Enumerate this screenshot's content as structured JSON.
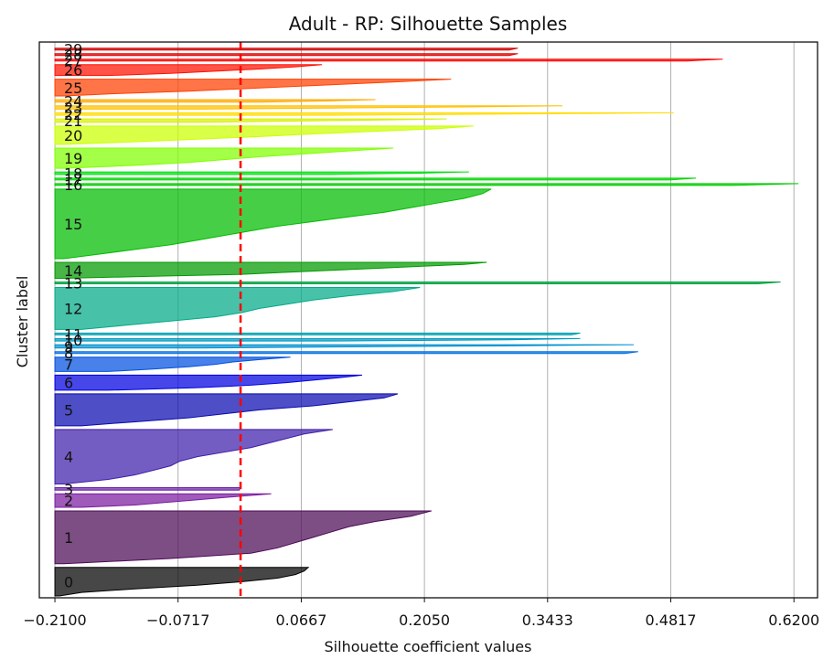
{
  "chart_data": {
    "type": "area",
    "title": "Adult - RP: Silhouette Samples",
    "xlabel": "Silhouette coefficient values",
    "ylabel": "Cluster label",
    "xlim": [
      -0.2275,
      0.6465
    ],
    "xticks": [
      -0.21,
      -0.0717,
      0.0667,
      0.205,
      0.3433,
      0.4817,
      0.62
    ],
    "xtick_labels": [
      "−0.2100",
      "−0.0717",
      "0.0667",
      "0.2050",
      "0.3433",
      "0.4817",
      "0.6200"
    ],
    "grid": "vertical",
    "average_silhouette": -0.0015,
    "average_line_color": "#ff0000",
    "clusters": [
      {
        "label": "0",
        "size": 34,
        "color": "#000000",
        "values": [
          0.0745,
          0.07,
          0.06,
          0.04,
          0.0,
          -0.05,
          -0.12,
          -0.18,
          -0.205
        ]
      },
      {
        "label": "1",
        "size": 63,
        "color": "#4b0a55",
        "values": [
          0.213,
          0.19,
          0.15,
          0.12,
          0.1,
          0.08,
          0.06,
          0.04,
          0.01,
          -0.08,
          -0.2
        ]
      },
      {
        "label": "2",
        "size": 16,
        "color": "#7a1aa0",
        "values": [
          0.033,
          0.0,
          -0.03,
          -0.06,
          -0.09,
          -0.12,
          -0.18
        ]
      },
      {
        "label": "3",
        "size": 3,
        "color": "#6a20a8",
        "values": [
          -0.0015,
          -0.002,
          -0.003
        ]
      },
      {
        "label": "4",
        "size": 65,
        "color": "#3e1eaa",
        "values": [
          0.102,
          0.07,
          0.05,
          0.03,
          0.01,
          -0.02,
          -0.05,
          -0.07,
          -0.08,
          -0.1,
          -0.12,
          -0.15,
          -0.2
        ]
      },
      {
        "label": "5",
        "size": 38,
        "color": "#0a0ab0",
        "values": [
          0.175,
          0.16,
          0.12,
          0.08,
          0.02,
          -0.02,
          -0.06,
          -0.12,
          -0.18
        ]
      },
      {
        "label": "6",
        "size": 18,
        "color": "#0000e0",
        "values": [
          0.135,
          0.11,
          0.08,
          0.05,
          0.01,
          -0.05,
          -0.15
        ]
      },
      {
        "label": "7",
        "size": 17,
        "color": "#0050e0",
        "values": [
          0.0545,
          0.02,
          -0.01,
          -0.03,
          -0.06,
          -0.1,
          -0.15
        ]
      },
      {
        "label": "8",
        "size": 2,
        "color": "#0070e0",
        "values": [
          0.445,
          0.43
        ]
      },
      {
        "label": "9",
        "size": 4,
        "color": "#0090d0",
        "values": [
          0.44,
          0.3,
          0.1,
          -0.05
        ]
      },
      {
        "label": "10",
        "size": 3,
        "color": "#0098c0",
        "values": [
          0.38,
          0.3,
          0.1
        ]
      },
      {
        "label": "11",
        "size": 2,
        "color": "#00a0b0",
        "values": [
          0.38,
          0.37
        ]
      },
      {
        "label": "12",
        "size": 50,
        "color": "#00aa88",
        "values": [
          0.2,
          0.17,
          0.12,
          0.08,
          0.05,
          0.02,
          0.0,
          -0.03,
          -0.08,
          -0.13,
          -0.18
        ]
      },
      {
        "label": "13",
        "size": 2,
        "color": "#00a040",
        "values": [
          0.605,
          0.58
        ]
      },
      {
        "label": "14",
        "size": 19,
        "color": "#009a00",
        "values": [
          0.275,
          0.25,
          0.2,
          0.15,
          0.1,
          0.05,
          0.0,
          -0.1,
          -0.2
        ]
      },
      {
        "label": "15",
        "size": 83,
        "color": "#00bb00",
        "values": [
          0.28,
          0.27,
          0.25,
          0.22,
          0.19,
          0.16,
          0.12,
          0.08,
          0.04,
          0.01,
          -0.02,
          -0.05,
          -0.08,
          -0.12,
          -0.16,
          -0.2
        ]
      },
      {
        "label": "16",
        "size": 2,
        "color": "#00cc00",
        "values": [
          0.625,
          0.55
        ]
      },
      {
        "label": "17",
        "size": 2,
        "color": "#00d800",
        "values": [
          0.51,
          0.48
        ]
      },
      {
        "label": "18",
        "size": 3,
        "color": "#00e010",
        "values": [
          0.255,
          0.2,
          0.1
        ]
      },
      {
        "label": "19",
        "size": 24,
        "color": "#80ff00",
        "values": [
          0.17,
          0.12,
          0.07,
          0.02,
          -0.02,
          -0.06,
          -0.12,
          -0.2
        ]
      },
      {
        "label": "20",
        "size": 22,
        "color": "#ccff00",
        "values": [
          0.26,
          0.22,
          0.15,
          0.08,
          0.02,
          -0.05,
          -0.12,
          -0.2
        ]
      },
      {
        "label": "21",
        "size": 4,
        "color": "#d8f000",
        "values": [
          0.23,
          0.15,
          0.05,
          -0.05
        ]
      },
      {
        "label": "22",
        "size": 3,
        "color": "#ffdd00",
        "values": [
          0.485,
          0.3,
          0.1
        ]
      },
      {
        "label": "23",
        "size": 4,
        "color": "#ffc000",
        "values": [
          0.36,
          0.25,
          0.1,
          -0.05
        ]
      },
      {
        "label": "24",
        "size": 3,
        "color": "#ffaa00",
        "values": [
          0.15,
          0.1,
          0.02
        ]
      },
      {
        "label": "25",
        "size": 20,
        "color": "#ff4000",
        "values": [
          0.235,
          0.18,
          0.12,
          0.06,
          0.0,
          -0.06,
          -0.14,
          -0.2
        ]
      },
      {
        "label": "26",
        "size": 13,
        "color": "#ff1000",
        "values": [
          0.09,
          0.06,
          0.02,
          -0.03,
          -0.08,
          -0.15
        ]
      },
      {
        "label": "27",
        "size": 2,
        "color": "#ff0000",
        "values": [
          0.54,
          0.5
        ]
      },
      {
        "label": "28",
        "size": 2,
        "color": "#e00000",
        "values": [
          0.31,
          0.3
        ]
      },
      {
        "label": "29",
        "size": 2,
        "color": "#d00000",
        "values": [
          0.31,
          0.3
        ]
      }
    ]
  }
}
